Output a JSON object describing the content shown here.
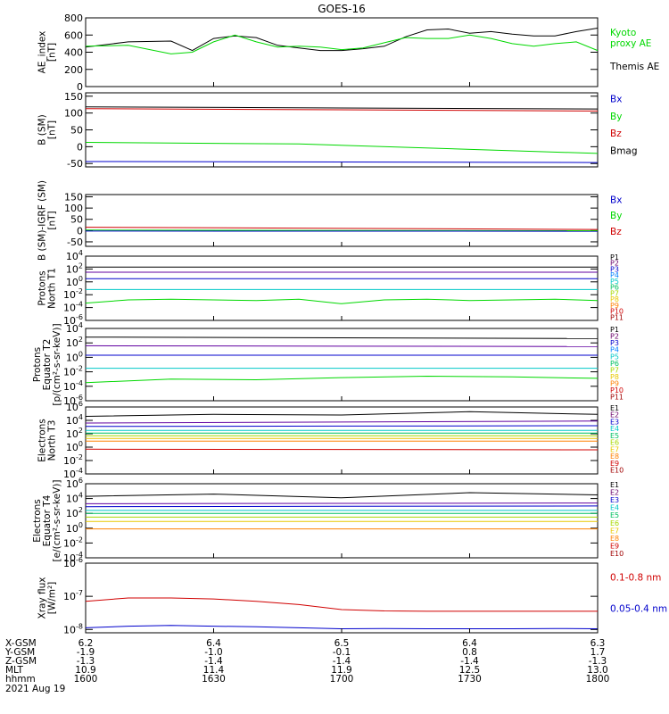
{
  "title": "GOES-16",
  "x_axis": {
    "range": [
      1600,
      1800
    ],
    "ticks": [
      1600,
      1630,
      1700,
      1730,
      1800
    ],
    "rows": [
      {
        "label": "X-GSM",
        "values": [
          "6.2",
          "6.4",
          "6.5",
          "6.4",
          "6.3"
        ]
      },
      {
        "label": "Y-GSM",
        "values": [
          "-1.9",
          "-1.0",
          "-0.1",
          "0.8",
          "1.7"
        ]
      },
      {
        "label": "Z-GSM",
        "values": [
          "-1.3",
          "-1.4",
          "-1.4",
          "-1.4",
          "-1.3"
        ]
      },
      {
        "label": "MLT",
        "values": [
          "10.9",
          "11.4",
          "11.9",
          "12.5",
          "13.0"
        ]
      },
      {
        "label": "hhmm",
        "values": [
          "1600",
          "1630",
          "1700",
          "1730",
          "1800"
        ]
      }
    ],
    "date": "2021 Aug 19"
  },
  "colors": {
    "black": "#000000",
    "green": "#00d800",
    "blue": "#0000cc",
    "red": "#d00000"
  },
  "chart_data": [
    {
      "id": "ae",
      "type": "line",
      "ylabel": [
        "AE_index",
        "[nT]"
      ],
      "yscale": "linear",
      "ylim": [
        0,
        800
      ],
      "yticks": [
        "0",
        "200",
        "400",
        "600",
        "800"
      ],
      "legend": [
        {
          "text": "Kyoto",
          "color": "#00d800"
        },
        {
          "text": "proxy AE",
          "color": "#00d800"
        },
        {
          "text": "Themis AE",
          "color": "#000000"
        }
      ],
      "series": [
        {
          "name": "Themis AE",
          "color": "#000000",
          "x": [
            1600,
            1610,
            1620,
            1625,
            1630,
            1635,
            1640,
            1645,
            1650,
            1655,
            1700,
            1705,
            1710,
            1715,
            1720,
            1725,
            1730,
            1735,
            1740,
            1745,
            1750,
            1755,
            1800
          ],
          "y": [
            460,
            520,
            530,
            420,
            560,
            590,
            570,
            480,
            450,
            420,
            420,
            440,
            470,
            580,
            660,
            670,
            620,
            640,
            610,
            590,
            590,
            640,
            680
          ]
        },
        {
          "name": "Kyoto proxy AE",
          "color": "#00d800",
          "x": [
            1600,
            1610,
            1620,
            1625,
            1630,
            1635,
            1640,
            1645,
            1650,
            1655,
            1700,
            1705,
            1710,
            1715,
            1720,
            1725,
            1730,
            1735,
            1740,
            1745,
            1750,
            1755,
            1800
          ],
          "y": [
            470,
            480,
            380,
            400,
            520,
            600,
            520,
            460,
            470,
            460,
            430,
            450,
            510,
            570,
            560,
            560,
            600,
            560,
            500,
            470,
            500,
            520,
            420
          ]
        }
      ]
    },
    {
      "id": "bsm",
      "type": "line",
      "ylabel": [
        "B (SM)",
        "[nT]"
      ],
      "yscale": "linear",
      "ylim": [
        -60,
        160
      ],
      "yticks": [
        "-50",
        "0",
        "50",
        "100",
        "150"
      ],
      "legend": [
        {
          "text": "Bx",
          "color": "#0000cc"
        },
        {
          "text": "By",
          "color": "#00d800"
        },
        {
          "text": "Bz",
          "color": "#d00000"
        },
        {
          "text": "Bmag",
          "color": "#000000"
        }
      ],
      "series": [
        {
          "name": "Bmag",
          "color": "#000000",
          "x": [
            1600,
            1800
          ],
          "y": [
            118,
            112
          ]
        },
        {
          "name": "Bz",
          "color": "#d00000",
          "x": [
            1600,
            1800
          ],
          "y": [
            113,
            106
          ]
        },
        {
          "name": "By",
          "color": "#00d800",
          "x": [
            1600,
            1650,
            1800
          ],
          "y": [
            13,
            8,
            -20
          ]
        },
        {
          "name": "Bx",
          "color": "#0000cc",
          "x": [
            1600,
            1800
          ],
          "y": [
            -44,
            -47
          ]
        }
      ]
    },
    {
      "id": "bigrf",
      "type": "line",
      "ylabel": [
        "B (SM)-IGRF (SM)",
        "[nT]"
      ],
      "yscale": "linear",
      "ylim": [
        -70,
        160
      ],
      "yticks": [
        "-50",
        "0",
        "50",
        "100",
        "150"
      ],
      "legend": [
        {
          "text": "Bx",
          "color": "#0000cc"
        },
        {
          "text": "By",
          "color": "#00d800"
        },
        {
          "text": "Bz",
          "color": "#d00000"
        }
      ],
      "series": [
        {
          "name": "Bz",
          "color": "#d00000",
          "x": [
            1600,
            1800
          ],
          "y": [
            15,
            5
          ]
        },
        {
          "name": "By",
          "color": "#00d800",
          "x": [
            1600,
            1800
          ],
          "y": [
            2,
            -1
          ]
        },
        {
          "name": "Bx",
          "color": "#0000cc",
          "x": [
            1600,
            1800
          ],
          "y": [
            -2,
            -3
          ]
        }
      ]
    },
    {
      "id": "prot-n",
      "type": "line",
      "ylabel": [
        "Protons",
        "North T1"
      ],
      "yscale": "log",
      "ylim": [
        -6,
        4
      ],
      "yticks": [
        "10^4",
        "10^2",
        "10^0",
        "10^-2",
        "10^-4",
        "10^-6"
      ],
      "legend": [
        {
          "text": "P1",
          "color": "#000000"
        },
        {
          "text": "P2",
          "color": "#6a006a"
        },
        {
          "text": "P3",
          "color": "#0000cc"
        },
        {
          "text": "P4",
          "color": "#0080ff"
        },
        {
          "text": "P5",
          "color": "#00c8c8"
        },
        {
          "text": "P6",
          "color": "#00c060"
        },
        {
          "text": "P7",
          "color": "#a8d800"
        },
        {
          "text": "P8",
          "color": "#e8c800"
        },
        {
          "text": "P9",
          "color": "#ff8000"
        },
        {
          "text": "P10",
          "color": "#d00000"
        },
        {
          "text": "P11",
          "color": "#a00000"
        }
      ],
      "series": [
        {
          "name": "P1",
          "color": "#000000",
          "x": [
            1600,
            1800
          ],
          "y": [
            2.3,
            2.3
          ]
        },
        {
          "name": "P3",
          "color": "#6000a0",
          "x": [
            1600,
            1800
          ],
          "y": [
            1.5,
            1.5
          ]
        },
        {
          "name": "P4",
          "color": "#0000cc",
          "x": [
            1600,
            1800
          ],
          "y": [
            0.5,
            0.5
          ]
        },
        {
          "name": "P5",
          "color": "#00c8c8",
          "x": [
            1600,
            1800
          ],
          "y": [
            -1.2,
            -1.2
          ]
        },
        {
          "name": "P6",
          "color": "#00d800",
          "x": [
            1600,
            1610,
            1620,
            1630,
            1640,
            1650,
            1700,
            1710,
            1720,
            1730,
            1740,
            1750,
            1800
          ],
          "y": [
            -3.3,
            -2.8,
            -2.7,
            -2.8,
            -2.9,
            -2.7,
            -3.4,
            -2.8,
            -2.7,
            -2.9,
            -2.8,
            -2.7,
            -2.9
          ]
        }
      ]
    },
    {
      "id": "prot-e",
      "type": "line",
      "ylabel": [
        "Protons",
        "Equator T2",
        "[p/(cm²-s-sr-keV)]"
      ],
      "yscale": "log",
      "ylim": [
        -6,
        4
      ],
      "yticks": [
        "10^4",
        "10^2",
        "10^0",
        "10^-2",
        "10^-4",
        "10^-6"
      ],
      "legend": [
        {
          "text": "P1",
          "color": "#000000"
        },
        {
          "text": "P2",
          "color": "#6a006a"
        },
        {
          "text": "P3",
          "color": "#0000cc"
        },
        {
          "text": "P4",
          "color": "#0080ff"
        },
        {
          "text": "P5",
          "color": "#00c8c8"
        },
        {
          "text": "P6",
          "color": "#00c060"
        },
        {
          "text": "P7",
          "color": "#a8d800"
        },
        {
          "text": "P8",
          "color": "#e8c800"
        },
        {
          "text": "P9",
          "color": "#ff8000"
        },
        {
          "text": "P10",
          "color": "#d00000"
        },
        {
          "text": "P11",
          "color": "#a00000"
        }
      ],
      "series": [
        {
          "name": "P1",
          "color": "#000000",
          "x": [
            1600,
            1800
          ],
          "y": [
            2.8,
            2.6
          ]
        },
        {
          "name": "P3",
          "color": "#6000a0",
          "x": [
            1600,
            1800
          ],
          "y": [
            1.6,
            1.5
          ]
        },
        {
          "name": "P4",
          "color": "#0000cc",
          "x": [
            1600,
            1800
          ],
          "y": [
            0.3,
            0.3
          ]
        },
        {
          "name": "P5",
          "color": "#00c8c8",
          "x": [
            1600,
            1800
          ],
          "y": [
            -1.5,
            -1.5
          ]
        },
        {
          "name": "P6",
          "color": "#00d800",
          "x": [
            1600,
            1620,
            1640,
            1700,
            1720,
            1740,
            1800
          ],
          "y": [
            -3.5,
            -3.0,
            -3.1,
            -2.8,
            -2.6,
            -2.7,
            -2.9
          ]
        }
      ]
    },
    {
      "id": "elec-n",
      "type": "line",
      "ylabel": [
        "Electrons",
        "North T3"
      ],
      "yscale": "log",
      "ylim": [
        -4,
        6
      ],
      "yticks": [
        "10^6",
        "10^4",
        "10^2",
        "10^0",
        "10^-2",
        "10^-4"
      ],
      "legend": [
        {
          "text": "E1",
          "color": "#000000"
        },
        {
          "text": "E2",
          "color": "#6a006a"
        },
        {
          "text": "E3",
          "color": "#0000cc"
        },
        {
          "text": "E4",
          "color": "#00c8c8"
        },
        {
          "text": "E5",
          "color": "#00c060"
        },
        {
          "text": "E6",
          "color": "#a8d800"
        },
        {
          "text": "E7",
          "color": "#e8c800"
        },
        {
          "text": "E8",
          "color": "#ff8000"
        },
        {
          "text": "E9",
          "color": "#d00000"
        },
        {
          "text": "E10",
          "color": "#a00000"
        }
      ],
      "series": [
        {
          "name": "E1",
          "color": "#000000",
          "x": [
            1600,
            1630,
            1700,
            1730,
            1800
          ],
          "y": [
            4.6,
            4.9,
            4.8,
            5.3,
            4.9
          ]
        },
        {
          "name": "E2",
          "color": "#6000a0",
          "x": [
            1600,
            1800
          ],
          "y": [
            3.6,
            3.9
          ]
        },
        {
          "name": "E3",
          "color": "#0000cc",
          "x": [
            1600,
            1800
          ],
          "y": [
            3.1,
            3.2
          ]
        },
        {
          "name": "E4",
          "color": "#00c8c8",
          "x": [
            1600,
            1800
          ],
          "y": [
            2.5,
            2.5
          ]
        },
        {
          "name": "E5",
          "color": "#00c060",
          "x": [
            1600,
            1800
          ],
          "y": [
            2.1,
            2.1
          ]
        },
        {
          "name": "E6",
          "color": "#a8d800",
          "x": [
            1600,
            1800
          ],
          "y": [
            1.7,
            1.7
          ]
        },
        {
          "name": "E7",
          "color": "#e8c800",
          "x": [
            1600,
            1800
          ],
          "y": [
            1.3,
            1.3
          ]
        },
        {
          "name": "E8",
          "color": "#ff8000",
          "x": [
            1600,
            1800
          ],
          "y": [
            0.9,
            0.9
          ]
        },
        {
          "name": "E9",
          "color": "#d00000",
          "x": [
            1600,
            1800
          ],
          "y": [
            -0.3,
            -0.4
          ]
        }
      ]
    },
    {
      "id": "elec-e",
      "type": "line",
      "ylabel": [
        "Electrons",
        "Equator T4",
        "[e/(cm²-s-sr-keV)]"
      ],
      "yscale": "log",
      "ylim": [
        -4,
        6
      ],
      "yticks": [
        "10^6",
        "10^4",
        "10^2",
        "10^0",
        "10^-2",
        "10^-4"
      ],
      "legend": [
        {
          "text": "E1",
          "color": "#000000"
        },
        {
          "text": "E2",
          "color": "#6a006a"
        },
        {
          "text": "E3",
          "color": "#0000cc"
        },
        {
          "text": "E4",
          "color": "#00c8c8"
        },
        {
          "text": "E5",
          "color": "#00c060"
        },
        {
          "text": "E6",
          "color": "#a8d800"
        },
        {
          "text": "E7",
          "color": "#e8c800"
        },
        {
          "text": "E8",
          "color": "#ff8000"
        },
        {
          "text": "E9",
          "color": "#d00000"
        },
        {
          "text": "E10",
          "color": "#a00000"
        }
      ],
      "series": [
        {
          "name": "E1",
          "color": "#000000",
          "x": [
            1600,
            1630,
            1700,
            1730,
            1800
          ],
          "y": [
            4.3,
            4.6,
            4.1,
            4.8,
            4.5
          ]
        },
        {
          "name": "E2",
          "color": "#6000a0",
          "x": [
            1600,
            1800
          ],
          "y": [
            3.3,
            3.4
          ]
        },
        {
          "name": "E3",
          "color": "#0000cc",
          "x": [
            1600,
            1800
          ],
          "y": [
            2.9,
            3.0
          ]
        },
        {
          "name": "E4",
          "color": "#00c8c8",
          "x": [
            1600,
            1800
          ],
          "y": [
            2.4,
            2.4
          ]
        },
        {
          "name": "E5",
          "color": "#00c060",
          "x": [
            1600,
            1800
          ],
          "y": [
            2.0,
            2.0
          ]
        },
        {
          "name": "E6",
          "color": "#a8d800",
          "x": [
            1600,
            1800
          ],
          "y": [
            1.5,
            1.5
          ]
        },
        {
          "name": "E7",
          "color": "#e8c800",
          "x": [
            1600,
            1800
          ],
          "y": [
            0.9,
            0.9
          ]
        },
        {
          "name": "E8",
          "color": "#ff8000",
          "x": [
            1600,
            1800
          ],
          "y": [
            -0.1,
            -0.1
          ]
        }
      ]
    },
    {
      "id": "xray",
      "type": "line",
      "ylabel": [
        "Xray flux",
        "[W/m²]"
      ],
      "yscale": "log",
      "ylim": [
        -8.1,
        -6
      ],
      "yticks": [
        "10^-6",
        "10^-7",
        "10^-8"
      ],
      "legend": [
        {
          "text": "0.1-0.8 nm",
          "color": "#d00000"
        },
        {
          "text": "0.05-0.4 nm",
          "color": "#0000cc"
        }
      ],
      "series": [
        {
          "name": "0.1-0.8 nm",
          "color": "#d00000",
          "x": [
            1600,
            1610,
            1620,
            1630,
            1640,
            1650,
            1700,
            1710,
            1720,
            1730,
            1740,
            1750,
            1800
          ],
          "y": [
            -7.15,
            -7.05,
            -7.05,
            -7.08,
            -7.15,
            -7.25,
            -7.4,
            -7.44,
            -7.45,
            -7.45,
            -7.45,
            -7.45,
            -7.45
          ]
        },
        {
          "name": "0.05-0.4 nm",
          "color": "#0000cc",
          "x": [
            1600,
            1610,
            1620,
            1630,
            1640,
            1650,
            1700,
            1710,
            1720,
            1730,
            1740,
            1750,
            1800
          ],
          "y": [
            -7.95,
            -7.9,
            -7.88,
            -7.9,
            -7.92,
            -7.95,
            -7.98,
            -7.97,
            -7.98,
            -7.98,
            -7.98,
            -7.97,
            -7.98
          ]
        }
      ]
    }
  ]
}
